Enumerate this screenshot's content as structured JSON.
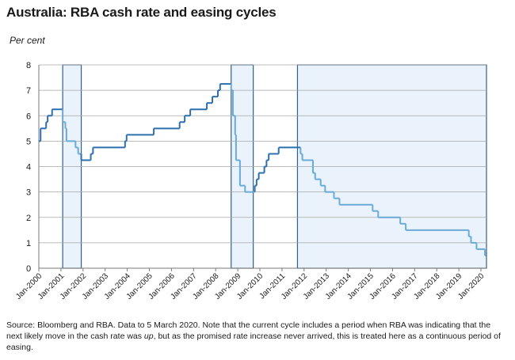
{
  "title": "Australia: RBA cash rate and easing cycles",
  "unit_label": "Per cent",
  "source": {
    "part1": "Source: Bloomberg and RBA. Data to 5 March 2020. Note that the current cycle includes a period when RBA was indicating that the next likely move in the cash rate was ",
    "italic": "up",
    "part2": ", but as the promised rate increase never arrived, this is treated here as a continuous period of easing."
  },
  "chart_data": {
    "type": "line",
    "title": "Australia: RBA cash rate and easing cycles",
    "ylabel": "Per cent",
    "xlabel": "",
    "xlim": [
      2000.0,
      2020.25
    ],
    "ylim": [
      0,
      8
    ],
    "yticks": [
      0,
      1,
      2,
      3,
      4,
      5,
      6,
      7,
      8
    ],
    "xtick_labels": [
      "Jan-2000",
      "Jan-2001",
      "Jan-2002",
      "Jan-2003",
      "Jan-2004",
      "Jan-2005",
      "Jan-2006",
      "Jan-2007",
      "Jan-2008",
      "Jan-2009",
      "Jan-2010",
      "Jan-2011",
      "Jan-2012",
      "Jan-2013",
      "Jan-2014",
      "Jan-2015",
      "Jan-2016",
      "Jan-2017",
      "Jan-2018",
      "Jan-2019",
      "Jan-2020"
    ],
    "grid": true,
    "easing_cycles": [
      {
        "start": 2001.08,
        "end": 2001.92
      },
      {
        "start": 2008.7,
        "end": 2009.7
      },
      {
        "start": 2011.7,
        "end": 2020.25
      }
    ],
    "series": [
      {
        "name": "RBA cash rate",
        "points": [
          [
            2000.0,
            5.0
          ],
          [
            2000.08,
            5.5
          ],
          [
            2000.33,
            5.75
          ],
          [
            2000.4,
            6.0
          ],
          [
            2000.6,
            6.25
          ],
          [
            2001.08,
            5.75
          ],
          [
            2001.2,
            5.5
          ],
          [
            2001.25,
            5.0
          ],
          [
            2001.66,
            4.75
          ],
          [
            2001.78,
            4.5
          ],
          [
            2001.92,
            4.25
          ],
          [
            2002.35,
            4.5
          ],
          [
            2002.45,
            4.75
          ],
          [
            2003.9,
            5.0
          ],
          [
            2003.97,
            5.25
          ],
          [
            2005.2,
            5.5
          ],
          [
            2006.37,
            5.75
          ],
          [
            2006.6,
            6.0
          ],
          [
            2006.85,
            6.25
          ],
          [
            2007.6,
            6.5
          ],
          [
            2007.85,
            6.75
          ],
          [
            2008.1,
            7.0
          ],
          [
            2008.2,
            7.25
          ],
          [
            2008.7,
            7.0
          ],
          [
            2008.78,
            6.0
          ],
          [
            2008.88,
            5.25
          ],
          [
            2008.92,
            4.25
          ],
          [
            2009.1,
            3.25
          ],
          [
            2009.33,
            3.0
          ],
          [
            2009.77,
            3.25
          ],
          [
            2009.85,
            3.5
          ],
          [
            2009.95,
            3.75
          ],
          [
            2010.2,
            4.0
          ],
          [
            2010.3,
            4.25
          ],
          [
            2010.4,
            4.5
          ],
          [
            2010.85,
            4.75
          ],
          [
            2011.84,
            4.5
          ],
          [
            2011.92,
            4.25
          ],
          [
            2012.4,
            3.75
          ],
          [
            2012.5,
            3.5
          ],
          [
            2012.75,
            3.25
          ],
          [
            2012.95,
            3.0
          ],
          [
            2013.35,
            2.75
          ],
          [
            2013.6,
            2.5
          ],
          [
            2015.1,
            2.25
          ],
          [
            2015.35,
            2.0
          ],
          [
            2016.35,
            1.75
          ],
          [
            2016.6,
            1.5
          ],
          [
            2019.45,
            1.25
          ],
          [
            2019.55,
            1.0
          ],
          [
            2019.8,
            0.75
          ],
          [
            2020.18,
            0.5
          ]
        ]
      }
    ]
  }
}
